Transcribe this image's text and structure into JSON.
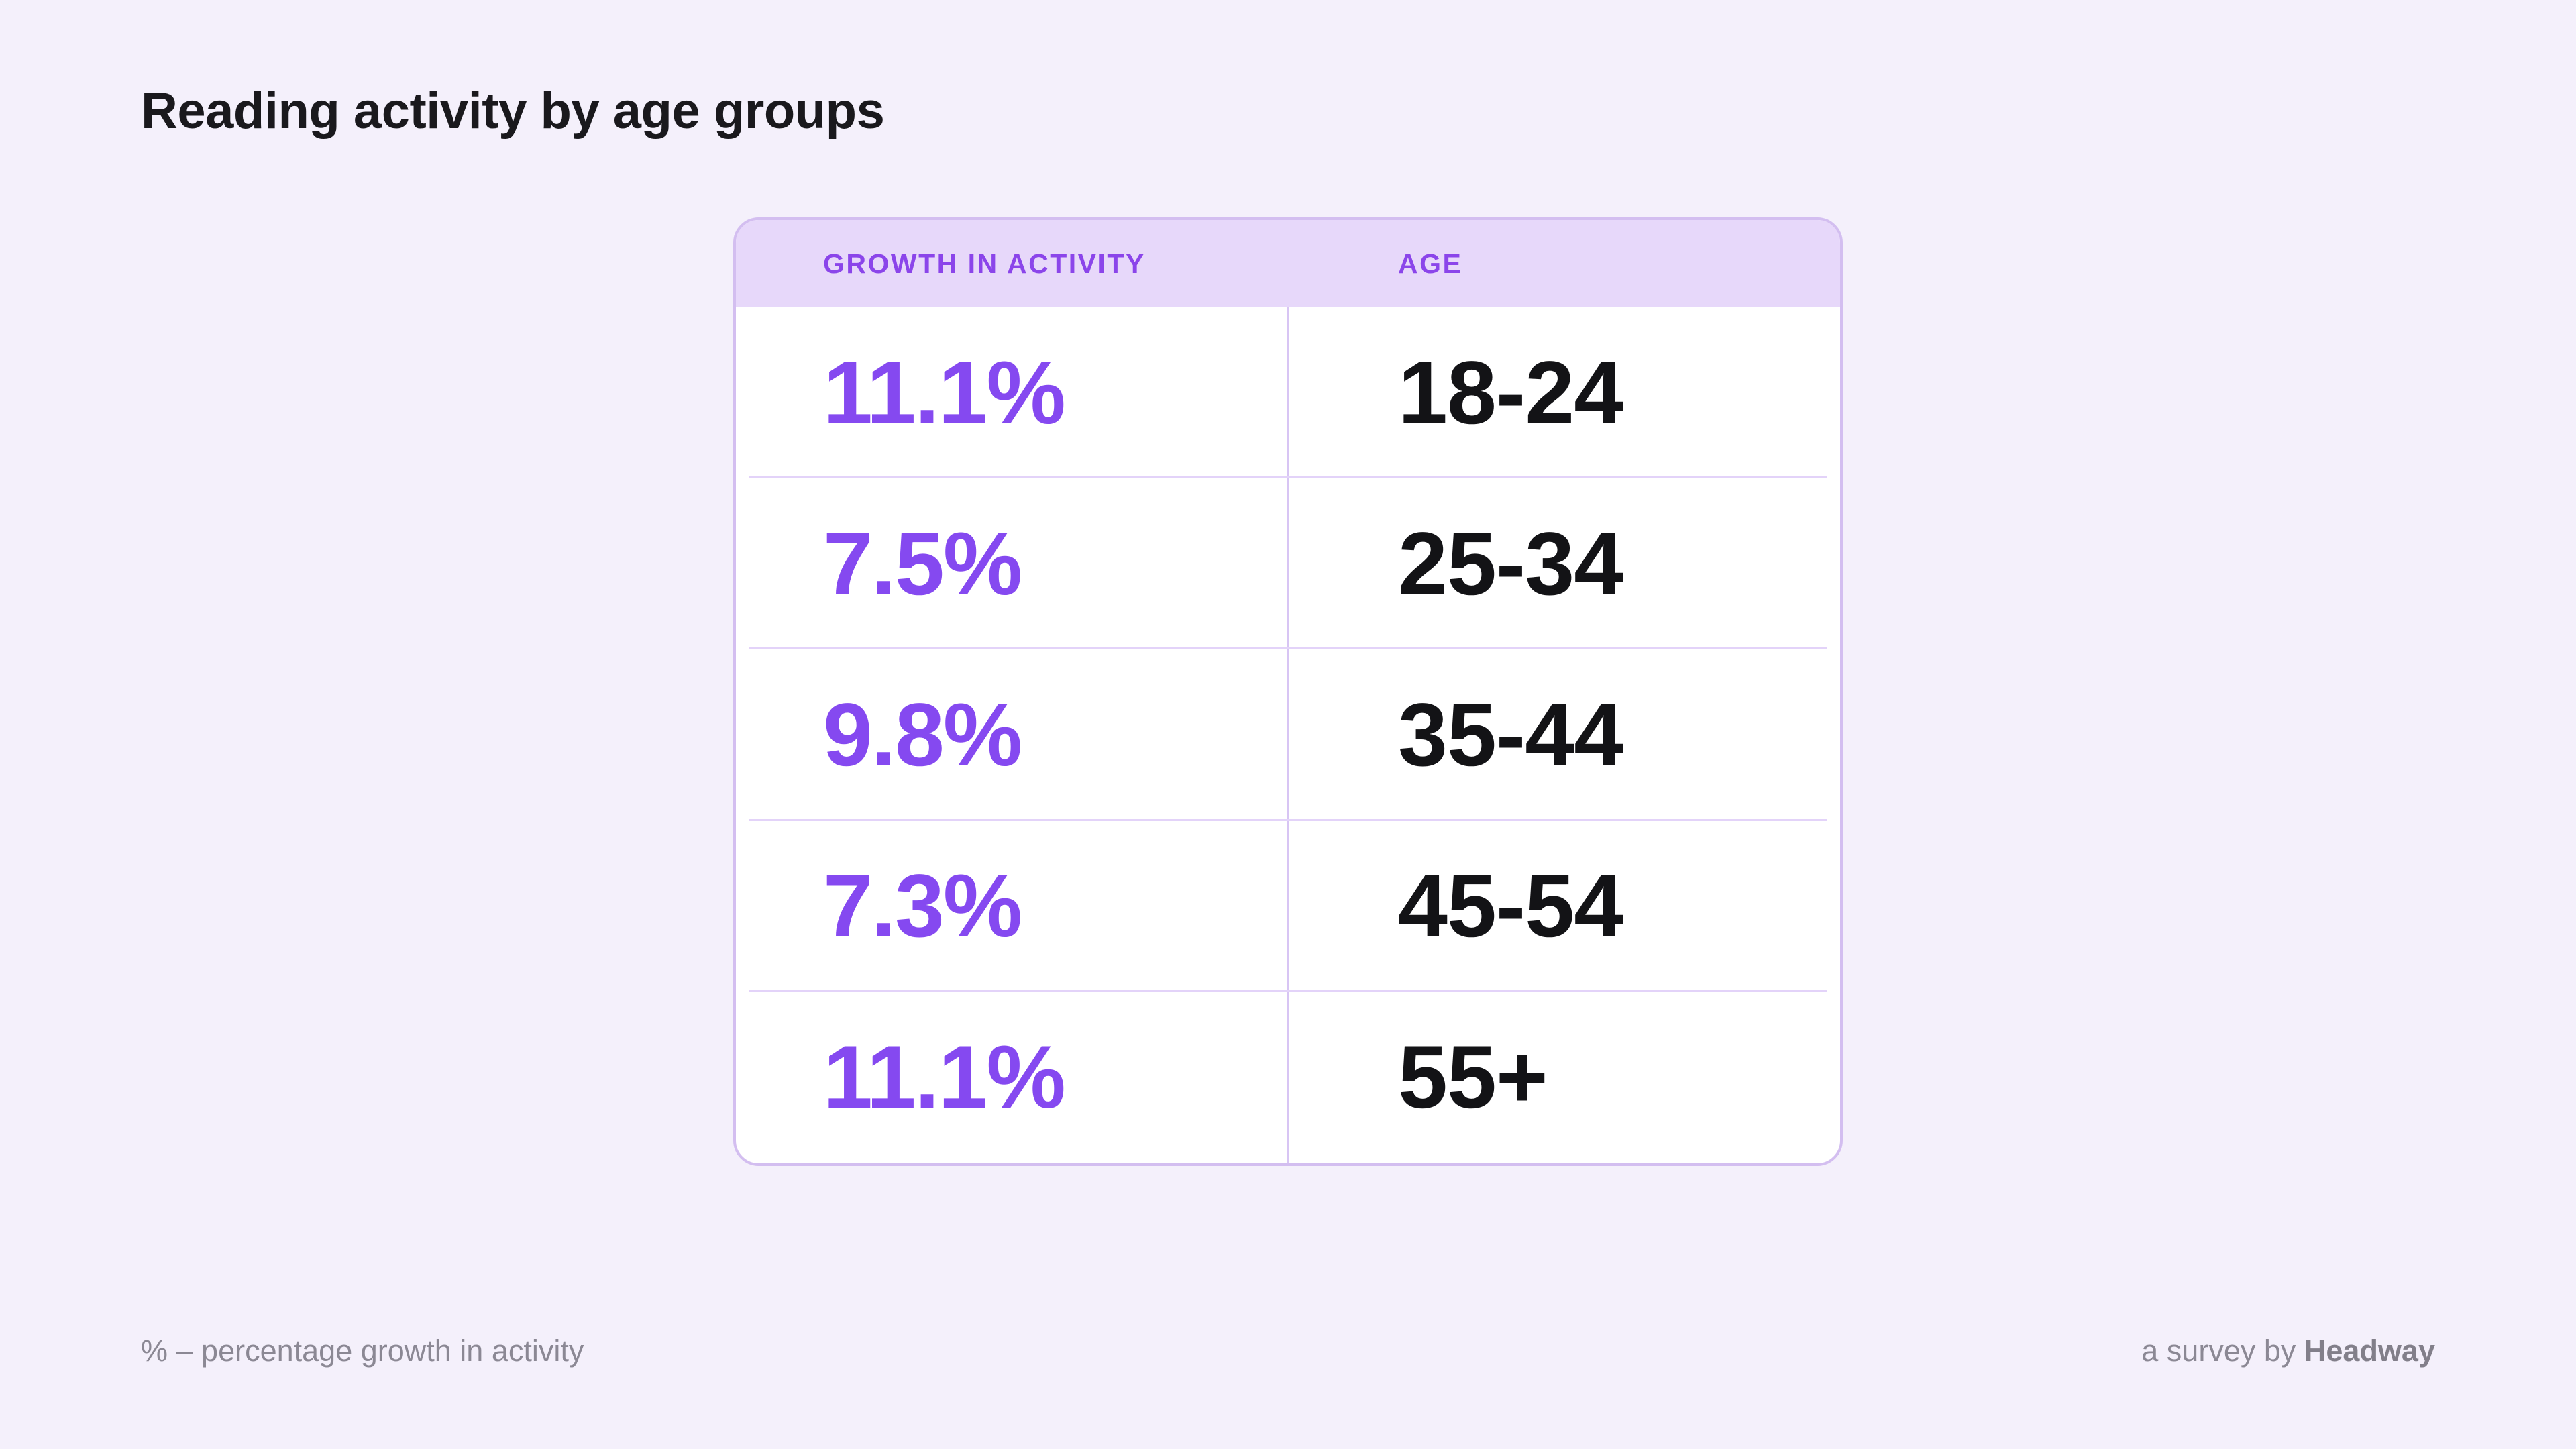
{
  "title": "Reading activity by age groups",
  "table": {
    "header": {
      "growth": "GROWTH IN ACTIVITY",
      "age": "AGE"
    },
    "rows": [
      {
        "growth": "11.1%",
        "age": "18-24"
      },
      {
        "growth": "7.5%",
        "age": "25-34"
      },
      {
        "growth": "9.8%",
        "age": "35-44"
      },
      {
        "growth": "7.3%",
        "age": "45-54"
      },
      {
        "growth": "11.1%",
        "age": "55+"
      }
    ]
  },
  "footer": {
    "note": "% – percentage growth in activity",
    "credit_prefix": "a survey by ",
    "credit_brand": "Headway"
  },
  "colors": {
    "page_bg": "#F4F0FB",
    "card_bg": "#FFFFFF",
    "card_border": "#D3BEF0",
    "header_band_bg": "#E7D8FA",
    "header_text": "#8B45EA",
    "accent_purple": "#8549F0",
    "age_text": "#131316",
    "divider": "#E3D3F9",
    "footer_text": "#8B8894",
    "title_text": "#1A191D"
  },
  "chart_data": {
    "type": "table",
    "title": "Reading activity by age groups",
    "columns": [
      "GROWTH IN ACTIVITY",
      "AGE"
    ],
    "rows": [
      [
        "11.1%",
        "18-24"
      ],
      [
        "7.5%",
        "25-34"
      ],
      [
        "9.8%",
        "35-44"
      ],
      [
        "7.3%",
        "45-54"
      ],
      [
        "11.1%",
        "55+"
      ]
    ],
    "age_groups": [
      "18-24",
      "25-34",
      "35-44",
      "45-54",
      "55+"
    ],
    "growth_percent_values": [
      11.1,
      7.5,
      9.8,
      7.3,
      11.1
    ],
    "note": "% – percentage growth in activity",
    "source": "a survey by Headway",
    "legend_position": "none",
    "grid": "row-dividers"
  }
}
